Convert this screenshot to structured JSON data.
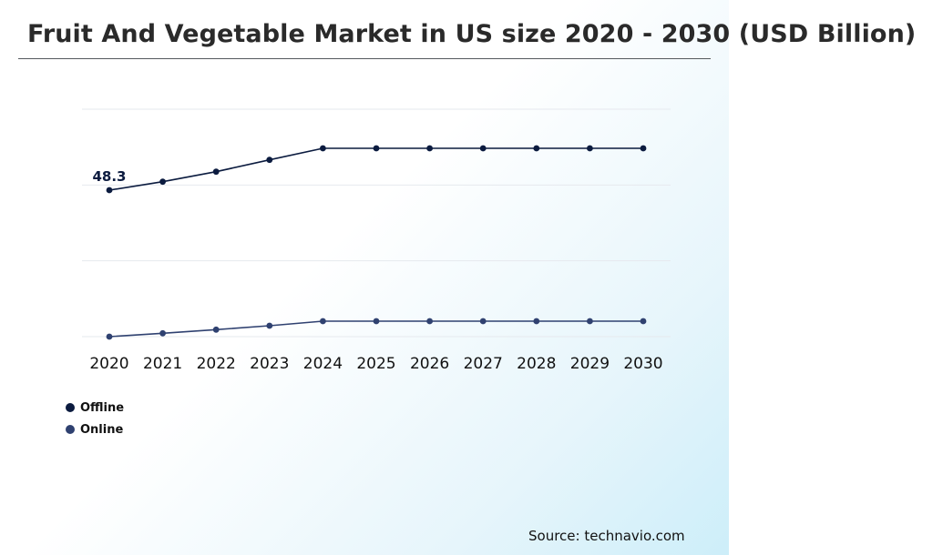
{
  "title": "Fruit And Vegetable Market in US size 2020 - 2030 (USD Billion)",
  "source": "Source: technavio.com",
  "colors": {
    "offline": "#0b1b3f",
    "online": "#2f4170",
    "grid": "#e6e9ee"
  },
  "chart_data": {
    "type": "line",
    "title": "Fruit And Vegetable Market in US size 2020 - 2030 (USD Billion)",
    "xlabel": "",
    "ylabel": "",
    "x": [
      "2020",
      "2021",
      "2022",
      "2023",
      "2024",
      "2025",
      "2026",
      "2027",
      "2028",
      "2029",
      "2030"
    ],
    "ylim": [
      0,
      75
    ],
    "grid": true,
    "legend": "bottom-left",
    "series": [
      {
        "name": "Offline",
        "color": "#0b1b3f",
        "values": [
          48.3,
          51.1,
          54.4,
          58.3,
          62.1,
          62.1,
          62.1,
          62.1,
          62.1,
          62.1,
          62.1
        ]
      },
      {
        "name": "Online",
        "color": "#2f4170",
        "values": [
          0.0,
          1.1,
          2.3,
          3.6,
          5.1,
          5.1,
          5.1,
          5.1,
          5.1,
          5.1,
          5.1
        ]
      }
    ],
    "annotations": [
      {
        "series": "Offline",
        "x": "2020",
        "label": "48.3"
      }
    ]
  }
}
